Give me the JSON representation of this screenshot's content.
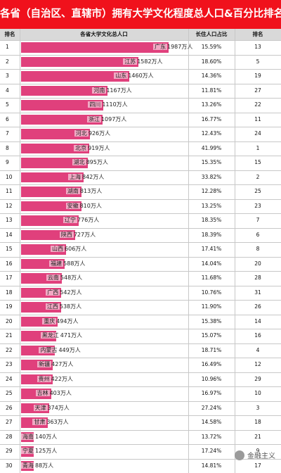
{
  "title": "各省（自治区、直辖市）拥有大学文化程度总人口&百分比排名",
  "header": {
    "rank": "排名",
    "province": "各省大学文化总人口",
    "ratio": "长住人口占比",
    "rank2": "排名"
  },
  "bar_color": "#e0407c",
  "title_color": "#f0111c",
  "unit": "万人",
  "watermark": "金融主义",
  "chart_data": {
    "type": "bar",
    "title": "各省（自治区、直辖市）拥有大学文化程度总人口&百分比排名",
    "xlabel": "",
    "ylabel": "",
    "rows": [
      {
        "rank": "1",
        "province": "广东",
        "value": 1987,
        "value_text": "1987万人",
        "ratio": "15.59%",
        "rank2": "13"
      },
      {
        "rank": "2",
        "province": "江苏",
        "value": 1582,
        "value_text": "1582万人",
        "ratio": "18.60%",
        "rank2": "5"
      },
      {
        "rank": "3",
        "province": "山东",
        "value": 1460,
        "value_text": "1460万人",
        "ratio": "14.36%",
        "rank2": "19"
      },
      {
        "rank": "4",
        "province": "河南",
        "value": 1167,
        "value_text": "1167万人",
        "ratio": "11.81%",
        "rank2": "27"
      },
      {
        "rank": "5",
        "province": "四川",
        "value": 1110,
        "value_text": "1110万人",
        "ratio": "13.26%",
        "rank2": "22"
      },
      {
        "rank": "6",
        "province": "浙江",
        "value": 1097,
        "value_text": "1097万人",
        "ratio": "16.77%",
        "rank2": "11"
      },
      {
        "rank": "7",
        "province": "河北",
        "value": 926,
        "value_text": "926万人",
        "ratio": "12.43%",
        "rank2": "24"
      },
      {
        "rank": "8",
        "province": "北京",
        "value": 919,
        "value_text": "919万人",
        "ratio": "41.99%",
        "rank2": "1"
      },
      {
        "rank": "9",
        "province": "湖北",
        "value": 895,
        "value_text": "895万人",
        "ratio": "15.35%",
        "rank2": "15"
      },
      {
        "rank": "10",
        "province": "上海",
        "value": 842,
        "value_text": "842万人",
        "ratio": "33.82%",
        "rank2": "2"
      },
      {
        "rank": "11",
        "province": "湖南",
        "value": 813,
        "value_text": "813万人",
        "ratio": "12.28%",
        "rank2": "25"
      },
      {
        "rank": "12",
        "province": "安徽",
        "value": 810,
        "value_text": "810万人",
        "ratio": "13.25%",
        "rank2": "23"
      },
      {
        "rank": "13",
        "province": "辽宁",
        "value": 776,
        "value_text": "776万人",
        "ratio": "18.35%",
        "rank2": "7"
      },
      {
        "rank": "14",
        "province": "陕西",
        "value": 727,
        "value_text": "727万人",
        "ratio": "18.39%",
        "rank2": "6"
      },
      {
        "rank": "15",
        "province": "山西",
        "value": 606,
        "value_text": "606万人",
        "ratio": "17.41%",
        "rank2": "8"
      },
      {
        "rank": "16",
        "province": "福建",
        "value": 588,
        "value_text": "588万人",
        "ratio": "14.04%",
        "rank2": "20"
      },
      {
        "rank": "17",
        "province": "云南",
        "value": 548,
        "value_text": "548万人",
        "ratio": "11.68%",
        "rank2": "28"
      },
      {
        "rank": "18",
        "province": "广西",
        "value": 542,
        "value_text": "542万人",
        "ratio": "10.76%",
        "rank2": "31"
      },
      {
        "rank": "19",
        "province": "江西",
        "value": 538,
        "value_text": "538万人",
        "ratio": "11.90%",
        "rank2": "26"
      },
      {
        "rank": "20",
        "province": "重庆",
        "value": 494,
        "value_text": "494万人",
        "ratio": "15.38%",
        "rank2": "14"
      },
      {
        "rank": "21",
        "province": "黑龙江",
        "value": 471,
        "value_text": "471万人",
        "ratio": "15.07%",
        "rank2": "16"
      },
      {
        "rank": "22",
        "province": "内蒙古",
        "value": 449,
        "value_text": "449万人",
        "ratio": "18.71%",
        "rank2": "4"
      },
      {
        "rank": "23",
        "province": "新疆",
        "value": 427,
        "value_text": "427万人",
        "ratio": "16.49%",
        "rank2": "12"
      },
      {
        "rank": "24",
        "province": "贵州",
        "value": 422,
        "value_text": "422万人",
        "ratio": "10.96%",
        "rank2": "29"
      },
      {
        "rank": "25",
        "province": "吉林",
        "value": 403,
        "value_text": "403万人",
        "ratio": "16.97%",
        "rank2": "10"
      },
      {
        "rank": "26",
        "province": "天津",
        "value": 374,
        "value_text": "374万人",
        "ratio": "27.24%",
        "rank2": "3"
      },
      {
        "rank": "27",
        "province": "甘肃",
        "value": 363,
        "value_text": "363万人",
        "ratio": "14.58%",
        "rank2": "18"
      },
      {
        "rank": "28",
        "province": "海南",
        "value": 140,
        "value_text": "140万人",
        "ratio": "13.72%",
        "rank2": "21"
      },
      {
        "rank": "29",
        "province": "宁夏",
        "value": 125,
        "value_text": "125万人",
        "ratio": "17.24%",
        "rank2": "9"
      },
      {
        "rank": "30",
        "province": "青海",
        "value": 88,
        "value_text": "88万人",
        "ratio": "14.81%",
        "rank2": "17"
      }
    ]
  }
}
